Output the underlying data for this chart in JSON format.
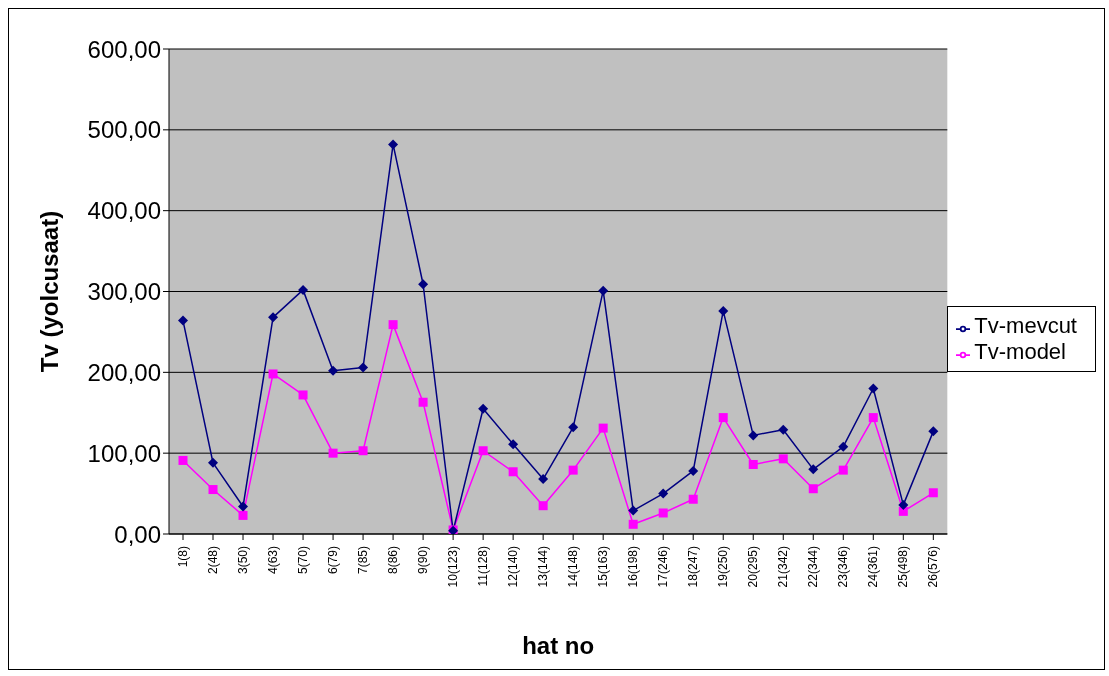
{
  "chart_data": {
    "type": "line",
    "xlabel": "hat no",
    "ylabel": "Tv (yolcusaat)",
    "categories": [
      "1(8)",
      "2(48)",
      "3(50)",
      "4(63)",
      "5(70)",
      "6(79)",
      "7(85)",
      "8(86)",
      "9(90)",
      "10(123)",
      "11(128)",
      "12(140)",
      "13(144)",
      "14(148)",
      "15(163)",
      "16(198)",
      "17(246)",
      "18(247)",
      "19(250)",
      "20(295)",
      "21(342)",
      "22(344)",
      "23(346)",
      "24(361)",
      "25(498)",
      "26(576)"
    ],
    "series": [
      {
        "name": "Tv-mevcut",
        "color": "#000080",
        "marker": "diamond",
        "values": [
          264,
          88,
          34,
          268,
          302,
          202,
          206,
          482,
          309,
          4,
          155,
          111,
          68,
          132,
          301,
          29,
          50,
          78,
          276,
          122,
          129,
          80,
          108,
          180,
          36,
          127
        ]
      },
      {
        "name": "Tv-model",
        "color": "#ff00ff",
        "marker": "square",
        "values": [
          91,
          55,
          23,
          198,
          172,
          100,
          103,
          259,
          163,
          5,
          103,
          77,
          35,
          79,
          131,
          12,
          26,
          43,
          144,
          86,
          93,
          56,
          79,
          144,
          28,
          51
        ]
      }
    ],
    "ylim": [
      0,
      600
    ],
    "yticks": [
      {
        "value": 0,
        "label": "0,00"
      },
      {
        "value": 100,
        "label": "100,00"
      },
      {
        "value": 200,
        "label": "200,00"
      },
      {
        "value": 300,
        "label": "300,00"
      },
      {
        "value": 400,
        "label": "400,00"
      },
      {
        "value": 500,
        "label": "500,00"
      },
      {
        "value": 600,
        "label": "600,00"
      }
    ],
    "grid": "y",
    "legend": "right",
    "line_style": "solid"
  }
}
